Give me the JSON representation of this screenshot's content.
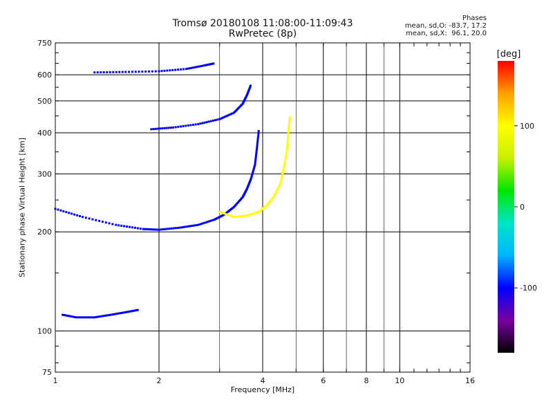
{
  "chart_data": {
    "type": "scatter",
    "title": "Tromsø 20180108 11:08:00-11:09:43",
    "subtitle": "RwPretec (8p)",
    "stats": {
      "heading": "Phases",
      "line_o": "mean, sd,O: -83.7, 17.2",
      "line_x": "mean, sd,X:  96.1, 20.0"
    },
    "xlabel": "Frequency [MHz]",
    "ylabel": "Stationary phase Virtual Height [km]",
    "x_scale": "log",
    "y_scale": "log",
    "xlim": [
      1,
      16
    ],
    "ylim": [
      75,
      750
    ],
    "x_ticks": [
      1,
      2,
      4,
      6,
      8,
      10,
      16
    ],
    "x_tick_labels": [
      "1",
      "2",
      "4",
      "6",
      "8",
      "10",
      "16"
    ],
    "x_grid": [
      2,
      4,
      6,
      8,
      10
    ],
    "x_minor_grid": [
      3,
      5,
      7,
      9
    ],
    "y_ticks": [
      75,
      100,
      200,
      300,
      400,
      500,
      600,
      750
    ],
    "y_tick_labels": [
      "75",
      "100",
      "200",
      "300",
      "400",
      "500",
      "600",
      "750"
    ],
    "y_grid": [
      100,
      200,
      300,
      400,
      500,
      600
    ],
    "colorbar": {
      "label": "[deg]",
      "range": [
        -180,
        180
      ],
      "ticks": [
        100,
        0,
        -100
      ],
      "tick_labels": [
        "100",
        "0",
        "-100"
      ],
      "colormap": [
        "#000000",
        "#7a00a0",
        "#0000ff",
        "#00b4ff",
        "#00e6c8",
        "#00e600",
        "#c8f000",
        "#ffff00",
        "#ffa000",
        "#ff0000"
      ]
    },
    "series": [
      {
        "trace": "F-layer O-mode trace",
        "phase_deg": -100,
        "points": [
          [
            1.0,
            235
          ],
          [
            1.2,
            222
          ],
          [
            1.5,
            210
          ],
          [
            1.8,
            204
          ],
          [
            2.0,
            203
          ],
          [
            2.3,
            206
          ],
          [
            2.6,
            210
          ],
          [
            2.9,
            218
          ],
          [
            3.1,
            226
          ],
          [
            3.3,
            238
          ],
          [
            3.5,
            255
          ],
          [
            3.6,
            270
          ],
          [
            3.7,
            290
          ],
          [
            3.8,
            320
          ],
          [
            3.85,
            360
          ],
          [
            3.9,
            410
          ]
        ]
      },
      {
        "trace": "F-layer X-mode trace",
        "phase_deg": 100,
        "points": [
          [
            3.0,
            230
          ],
          [
            3.3,
            222
          ],
          [
            3.6,
            224
          ],
          [
            3.9,
            230
          ],
          [
            4.1,
            240
          ],
          [
            4.3,
            255
          ],
          [
            4.5,
            280
          ],
          [
            4.6,
            310
          ],
          [
            4.7,
            350
          ],
          [
            4.75,
            400
          ],
          [
            4.8,
            450
          ]
        ]
      },
      {
        "trace": "Second-hop O-mode trace",
        "phase_deg": -100,
        "points": [
          [
            1.9,
            410
          ],
          [
            2.2,
            415
          ],
          [
            2.6,
            425
          ],
          [
            3.0,
            440
          ],
          [
            3.3,
            460
          ],
          [
            3.5,
            490
          ],
          [
            3.6,
            520
          ],
          [
            3.7,
            560
          ]
        ]
      },
      {
        "trace": "Low-frequency E-region trace",
        "phase_deg": -100,
        "points": [
          [
            1.05,
            112
          ],
          [
            1.15,
            110
          ],
          [
            1.3,
            110
          ],
          [
            1.45,
            112
          ],
          [
            1.6,
            114
          ],
          [
            1.75,
            116
          ]
        ]
      },
      {
        "trace": "Upper ray 600 km",
        "phase_deg": -100,
        "points": [
          [
            1.3,
            610
          ],
          [
            1.6,
            612
          ],
          [
            2.0,
            615
          ],
          [
            2.4,
            625
          ],
          [
            2.7,
            640
          ],
          [
            2.9,
            650
          ]
        ]
      }
    ]
  }
}
